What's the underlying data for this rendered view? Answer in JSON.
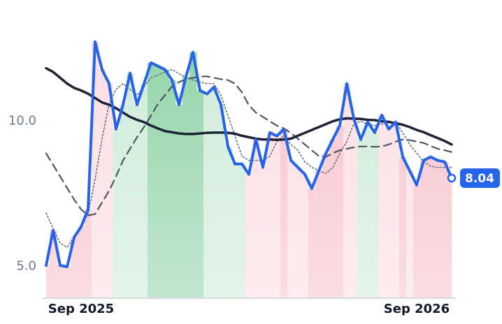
{
  "chart_data": {
    "type": "line",
    "categories": [
      null,
      null,
      null,
      null,
      null,
      "Sep 2025",
      null,
      null,
      null,
      null,
      null,
      null,
      null,
      null,
      null,
      null,
      null,
      null,
      null,
      null,
      null,
      null,
      null,
      null,
      null,
      null,
      null,
      null,
      null,
      null,
      null,
      null,
      null,
      null,
      null,
      null,
      null,
      null,
      null,
      null,
      null,
      null,
      null,
      null,
      null,
      null,
      null,
      null,
      null,
      null,
      null,
      null,
      null,
      "Sep 2026",
      null,
      null,
      null,
      null,
      null
    ],
    "series": [
      {
        "color": "#2563eb",
        "values": [
          5.03,
          6.24,
          5.03,
          4.98,
          6.0,
          6.36,
          6.96,
          12.74,
          11.78,
          11.3,
          9.73,
          10.57,
          11.66,
          10.57,
          11.3,
          12.02,
          11.9,
          11.78,
          11.42,
          10.57,
          11.54,
          12.38,
          11.06,
          10.94,
          11.18,
          10.57,
          9.13,
          8.53,
          8.53,
          8.17,
          9.37,
          8.41,
          9.61,
          9.49,
          9.73,
          8.65,
          8.41,
          8.17,
          7.68,
          8.29,
          8.89,
          9.37,
          9.85,
          11.3,
          10.09,
          9.37,
          9.97,
          9.61,
          10.21,
          9.73,
          9.97,
          8.77,
          8.29,
          7.8,
          8.65,
          8.77,
          8.65,
          8.6,
          8.04
        ]
      },
      {
        "color": "#1e2235",
        "values": [
          11.83,
          11.7,
          11.5,
          11.3,
          11.15,
          11.06,
          10.95,
          10.8,
          10.65,
          10.57,
          10.45,
          10.3,
          10.15,
          10.05,
          9.97,
          9.85,
          9.75,
          9.66,
          9.62,
          9.58,
          9.56,
          9.56,
          9.58,
          9.6,
          9.61,
          9.61,
          9.6,
          9.57,
          9.5,
          9.45,
          9.4,
          9.37,
          9.37,
          9.36,
          9.37,
          9.4,
          9.5,
          9.6,
          9.7,
          9.8,
          9.9,
          10.0,
          10.07,
          10.1,
          10.09,
          10.08,
          10.05,
          10.04,
          10.0,
          9.98,
          9.93,
          9.88,
          9.8,
          9.7,
          9.62,
          9.52,
          9.42,
          9.32,
          9.2
        ]
      },
      {
        "color": "#4b5563",
        "dash": "11,7",
        "values": [
          8.89,
          8.5,
          8.1,
          7.7,
          7.3,
          6.96,
          6.75,
          6.8,
          7.2,
          7.6,
          8.1,
          8.65,
          9.05,
          9.45,
          9.8,
          10.2,
          10.6,
          10.9,
          11.2,
          11.35,
          11.45,
          11.5,
          11.54,
          11.55,
          11.5,
          11.45,
          11.42,
          11.3,
          11.0,
          10.55,
          10.3,
          10.15,
          10.0,
          9.85,
          9.75,
          9.6,
          9.4,
          9.2,
          9.0,
          8.8,
          8.77,
          8.9,
          9.0,
          9.05,
          9.1,
          9.13,
          9.13,
          9.12,
          9.13,
          9.2,
          9.3,
          9.37,
          9.35,
          9.3,
          9.25,
          9.15,
          9.05,
          9.0,
          8.94
        ]
      },
      {
        "color": "#6b7280",
        "dash": "2,3",
        "values": [
          6.84,
          6.3,
          5.8,
          5.65,
          6.0,
          6.4,
          6.8,
          8.0,
          9.4,
          10.6,
          11.1,
          11.3,
          11.1,
          10.9,
          11.2,
          11.5,
          11.6,
          11.7,
          11.78,
          11.65,
          11.5,
          11.42,
          11.35,
          11.3,
          11.3,
          10.9,
          10.2,
          9.5,
          8.8,
          8.65,
          8.65,
          8.65,
          8.8,
          9.3,
          9.5,
          9.2,
          9.0,
          8.6,
          8.41,
          8.3,
          8.2,
          8.4,
          8.9,
          9.3,
          9.9,
          10.0,
          9.9,
          9.85,
          9.9,
          9.95,
          9.97,
          9.6,
          9.2,
          8.9,
          8.6,
          8.45,
          8.41,
          8.41,
          8.41
        ]
      }
    ],
    "band_colors": [
      "#f7c1cb",
      "#f7c1cb",
      "#f7c1cb",
      "#f7c1cb",
      "#f7c1cb",
      "#f7c1cb",
      "#f7c1cb",
      "#fbdde2",
      "#fbdde2",
      "#fbdde2",
      "#cdebd8",
      "#cdebd8",
      "#cdebd8",
      "#cdebd8",
      "#cdebd8",
      "#8fd3a6",
      "#8fd3a6",
      "#8fd3a6",
      "#8fd3a6",
      "#8fd3a6",
      "#8fd3a6",
      "#8fd3a6",
      "#8fd3a6",
      "#cdebd8",
      "#cdebd8",
      "#cdebd8",
      "#cdebd8",
      "#cdebd8",
      "#cdebd8",
      "#fbdde2",
      "#fbdde2",
      "#fbdde2",
      "#fbdde2",
      "#fbdde2",
      "#f7c1cb",
      "#fbdde2",
      "#fbdde2",
      "#fbdde2",
      "#f7c1cb",
      "#f7c1cb",
      "#f7c1cb",
      "#f7c1cb",
      "#f7c1cb",
      "#fbdde2",
      "#fbdde2",
      "#cdebd8",
      "#cdebd8",
      "#cdebd8",
      "#fbdde2",
      "#fbdde2",
      "#fbdde2",
      "#f7c1cb",
      "#fbdde2",
      "#f7c1cb",
      "#f7c1cb",
      "#f7c1cb",
      "#f7c1cb",
      "#f7c1cb",
      "#f7c1cb"
    ],
    "ylim": [
      3.9,
      13.7
    ],
    "yticks": [
      {
        "value": 5,
        "label": "5.0"
      },
      {
        "value": 10,
        "label": "10.0"
      }
    ],
    "grid": false
  }
}
